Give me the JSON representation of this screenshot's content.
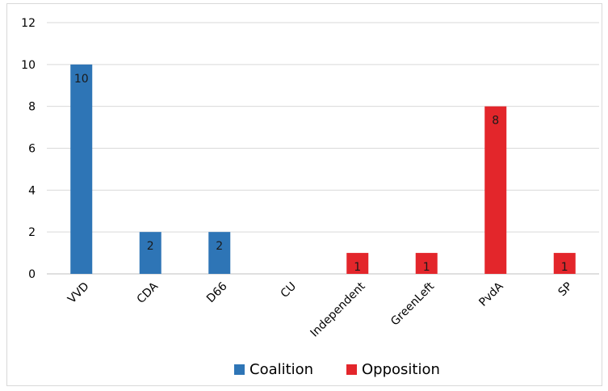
{
  "chart_data": {
    "type": "bar",
    "categories": [
      "VVD",
      "CDA",
      "D66",
      "CU",
      "Independent",
      "GreenLeft",
      "PvdA",
      "SP"
    ],
    "series": [
      {
        "name": "Coalition",
        "color": "#2e75b6",
        "values": [
          10,
          2,
          2,
          null,
          null,
          null,
          null,
          null
        ]
      },
      {
        "name": "Opposition",
        "color": "#e3262b",
        "values": [
          null,
          null,
          null,
          null,
          1,
          1,
          8,
          1
        ]
      }
    ],
    "data_labels": [
      "10",
      "2",
      "2",
      "",
      "1",
      "1",
      "8",
      "1"
    ],
    "yticks": [
      "0",
      "2",
      "4",
      "6",
      "8",
      "10",
      "12"
    ],
    "ylim": [
      0,
      12
    ],
    "grid": true,
    "legend_position": "bottom"
  }
}
